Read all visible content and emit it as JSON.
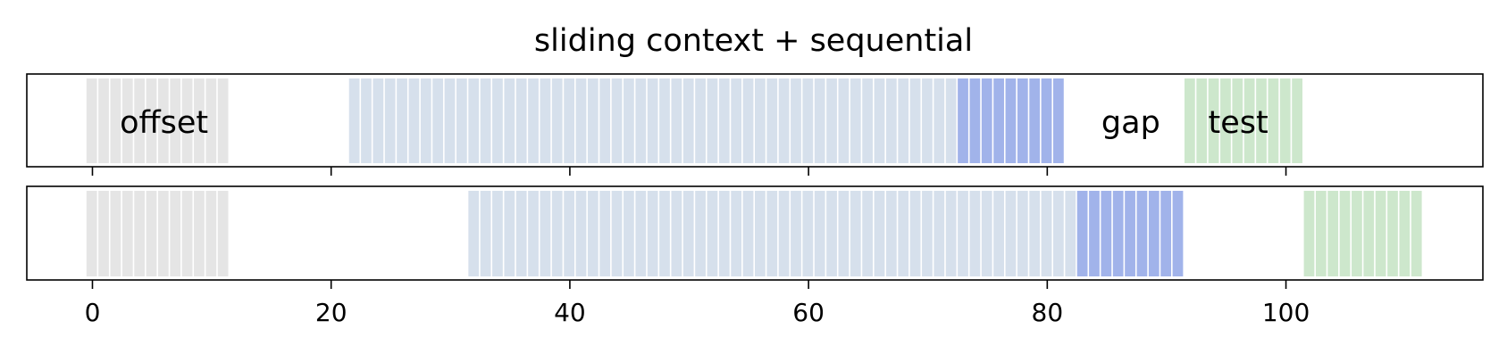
{
  "chart_data": {
    "type": "bar",
    "title": "sliding context + sequential",
    "xlabel": "",
    "ylabel": "",
    "xlim": [
      -5.5,
      116.5
    ],
    "xticks": [
      0,
      20,
      40,
      60,
      80,
      100
    ],
    "xtick_labels": [
      "0",
      "20",
      "40",
      "60",
      "80",
      "100"
    ],
    "grid": false,
    "legend": "none",
    "segment_colors": {
      "offset": "#e5e5e5",
      "context": "#d6e0ec",
      "sequential": "#a1b3ea",
      "test": "#cde7cc"
    },
    "panels": [
      {
        "segments": [
          {
            "kind": "offset",
            "start": 0,
            "end": 11
          },
          {
            "kind": "context",
            "start": 22,
            "end": 72
          },
          {
            "kind": "sequential",
            "start": 73,
            "end": 81
          },
          {
            "kind": "test",
            "start": 92,
            "end": 101
          }
        ],
        "annotations": [
          {
            "text": "offset",
            "x": 6
          },
          {
            "text": "gap",
            "x": 87
          },
          {
            "text": "test",
            "x": 96
          }
        ]
      },
      {
        "segments": [
          {
            "kind": "offset",
            "start": 0,
            "end": 11
          },
          {
            "kind": "context",
            "start": 32,
            "end": 82
          },
          {
            "kind": "sequential",
            "start": 83,
            "end": 91
          },
          {
            "kind": "test",
            "start": 102,
            "end": 111
          }
        ],
        "annotations": []
      }
    ]
  }
}
